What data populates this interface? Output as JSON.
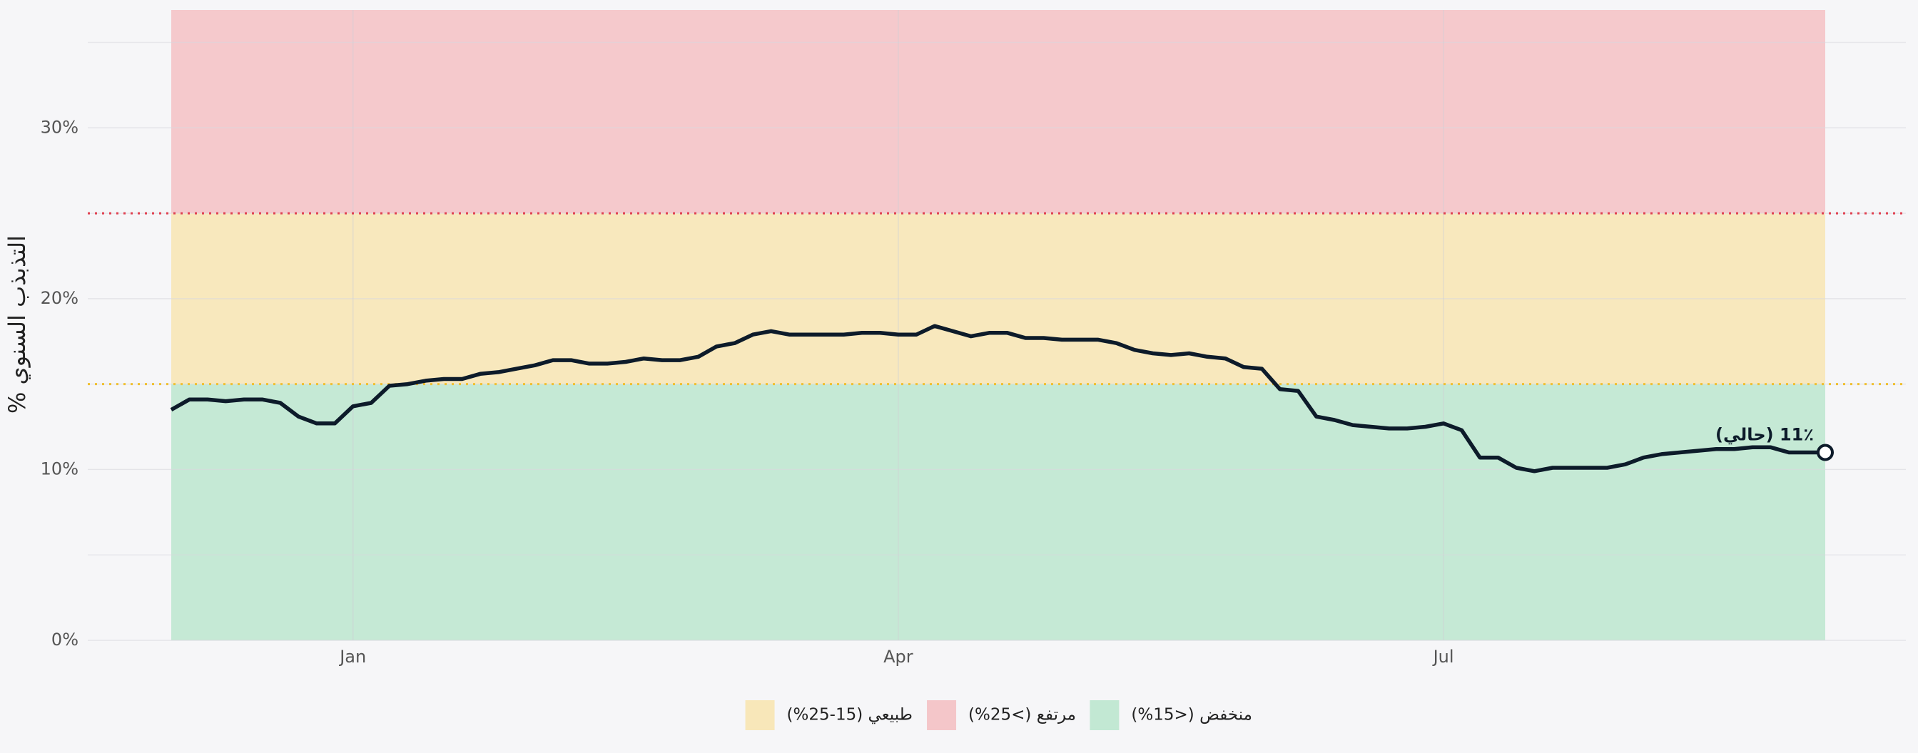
{
  "chart_data": {
    "type": "line",
    "y_label": "التذبذب السنوي %",
    "categories": [
      null,
      null,
      null,
      null,
      null,
      null,
      null,
      null,
      null,
      null,
      "Jan",
      null,
      null,
      null,
      null,
      null,
      null,
      null,
      null,
      null,
      null,
      null,
      null,
      null,
      null,
      null,
      null,
      null,
      null,
      null,
      null,
      null,
      null,
      null,
      null,
      null,
      null,
      null,
      null,
      null,
      "Apr",
      null,
      null,
      null,
      null,
      null,
      null,
      null,
      null,
      null,
      null,
      null,
      null,
      null,
      null,
      null,
      null,
      null,
      null,
      null,
      null,
      null,
      null,
      null,
      null,
      null,
      null,
      null,
      null,
      null,
      "Jul",
      null,
      null,
      null,
      null,
      null,
      null,
      null,
      null,
      null,
      null,
      null,
      null,
      null,
      null,
      null,
      null,
      null,
      null,
      null,
      null,
      null
    ],
    "values": [
      13.5,
      14.1,
      14.1,
      14.0,
      14.1,
      14.1,
      13.9,
      13.1,
      12.7,
      12.7,
      13.7,
      13.9,
      14.9,
      15.0,
      15.2,
      15.3,
      15.3,
      15.6,
      15.7,
      15.9,
      16.1,
      16.4,
      16.4,
      16.2,
      16.2,
      16.3,
      16.5,
      16.4,
      16.4,
      16.6,
      17.2,
      17.4,
      17.9,
      18.1,
      17.9,
      17.9,
      17.9,
      17.9,
      18.0,
      18.0,
      17.9,
      17.9,
      18.4,
      18.1,
      17.8,
      18.0,
      18.0,
      17.7,
      17.7,
      17.6,
      17.6,
      17.6,
      17.4,
      17.0,
      16.8,
      16.7,
      16.8,
      16.6,
      16.5,
      16.0,
      15.9,
      14.7,
      14.6,
      13.1,
      12.9,
      12.6,
      12.5,
      12.4,
      12.4,
      12.5,
      12.7,
      12.3,
      10.7,
      10.7,
      10.1,
      9.9,
      10.1,
      10.1,
      10.1,
      10.1,
      10.3,
      10.7,
      10.9,
      11.0,
      11.1,
      11.2,
      11.2,
      11.3,
      11.3,
      11.0,
      11.0,
      11.0
    ],
    "color": "#0d1b2a",
    "ylim": [
      0,
      36.9
    ],
    "yticks": [
      {
        "value": 0,
        "label": "0%"
      },
      {
        "value": 10,
        "label": "10%"
      },
      {
        "value": 20,
        "label": "20%"
      },
      {
        "value": 30,
        "label": "30%"
      }
    ],
    "ygrid_minor": [
      5,
      15,
      25,
      35
    ],
    "grid": true,
    "bands": [
      {
        "name": "منخفض (<15%)",
        "from": 0,
        "to": 15,
        "color": "#c2e8d3"
      },
      {
        "name": "مرتفع (>25%)",
        "from": 25,
        "to": 36.9,
        "color": "#f4c6c9"
      },
      {
        "name": "طبيعي (15-25%)",
        "from": 15,
        "to": 25,
        "color": "#f8e7b9"
      }
    ],
    "thresholds": [
      {
        "value": 15,
        "color": "#f0c030"
      },
      {
        "value": 25,
        "color": "#e04050"
      }
    ],
    "annotation": "11٪ (حالي)",
    "legend_position": "bottom"
  }
}
